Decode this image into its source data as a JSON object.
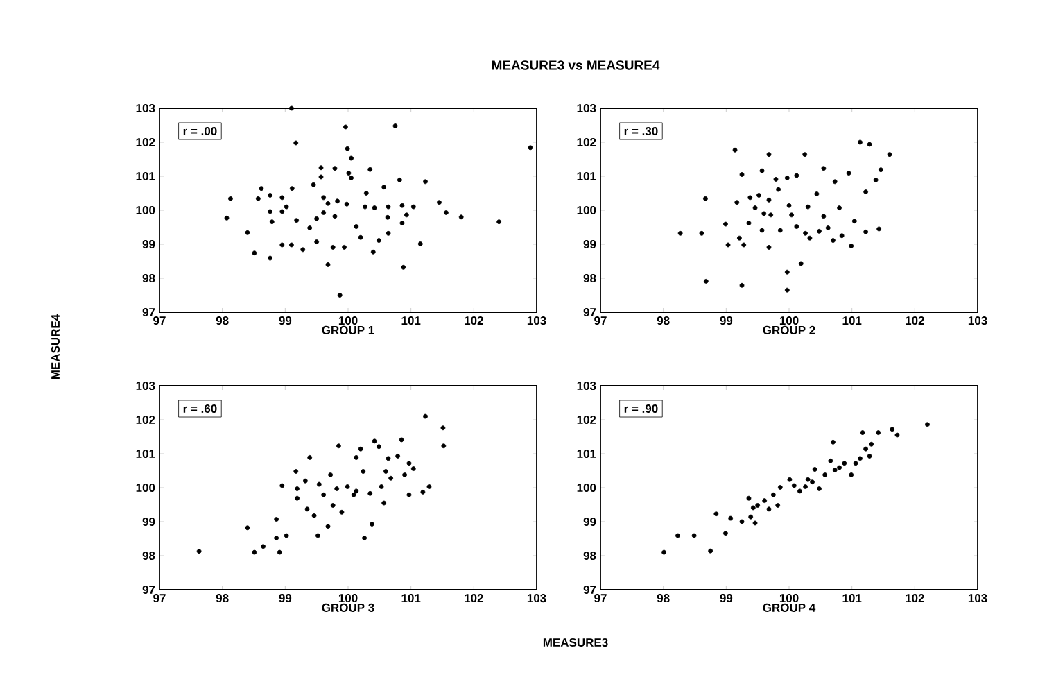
{
  "chart_data": [
    {
      "type": "scatter",
      "title": "MEASURE3 vs MEASURE4",
      "ylabel": "MEASURE4",
      "xlabel": "GROUP 1",
      "annotations": [
        "r = .00",
        "MEASURE3"
      ],
      "color": "#000000",
      "xlim": [
        97,
        103
      ],
      "ylim": [
        97,
        103
      ],
      "xticks": [
        97,
        98,
        99,
        100,
        101,
        102,
        103
      ],
      "yticks": [
        97,
        98,
        99,
        100,
        101,
        102,
        103
      ],
      "x": [
        99.1,
        99.96,
        100.75,
        99.17,
        102.9,
        99.99,
        100.05,
        99.57,
        99.79,
        100.01,
        100.35,
        99.57,
        100.05,
        100.82,
        101.23,
        99.45,
        100.57,
        98.62,
        99.11,
        100.29,
        98.13,
        98.57,
        98.76,
        98.95,
        99.61,
        99.83,
        99.98,
        99.68,
        100.27,
        100.42,
        100.64,
        100.86,
        101.04,
        101.45,
        99.02,
        98.76,
        98.95,
        99.61,
        99.79,
        99.5,
        100.63,
        100.93,
        101.56,
        101.8,
        98.07,
        98.79,
        99.18,
        99.39,
        100.13,
        100.86,
        102.4,
        98.4,
        100.2,
        100.49,
        100.64,
        99.5,
        98.95,
        99.1,
        99.28,
        99.76,
        99.94,
        101.15,
        100.4,
        98.51,
        98.76,
        99.68,
        100.88,
        99.87
      ],
      "values": [
        103.0,
        102.45,
        102.48,
        101.98,
        101.84,
        101.81,
        101.53,
        101.25,
        101.23,
        101.09,
        101.2,
        100.98,
        100.95,
        100.89,
        100.84,
        100.75,
        100.68,
        100.64,
        100.64,
        100.5,
        100.34,
        100.34,
        100.44,
        100.37,
        100.37,
        100.27,
        100.18,
        100.2,
        100.1,
        100.07,
        100.1,
        100.14,
        100.1,
        100.23,
        100.1,
        99.96,
        99.96,
        99.93,
        99.82,
        99.75,
        99.79,
        99.86,
        99.93,
        99.8,
        99.77,
        99.66,
        99.7,
        99.48,
        99.52,
        99.62,
        99.66,
        99.34,
        99.2,
        99.11,
        99.32,
        99.07,
        98.98,
        98.98,
        98.84,
        98.91,
        98.91,
        99.01,
        98.77,
        98.74,
        98.59,
        98.4,
        98.32,
        97.5
      ]
    },
    {
      "type": "scatter",
      "xlabel": "GROUP 2",
      "annotations": [
        "r = .30"
      ],
      "color": "#000000",
      "xlim": [
        97,
        103
      ],
      "ylim": [
        97,
        103
      ],
      "xticks": [
        97,
        98,
        99,
        100,
        101,
        102,
        103
      ],
      "yticks": [
        97,
        98,
        99,
        100,
        101,
        102,
        103
      ],
      "x": [
        99.14,
        99.68,
        100.25,
        101.13,
        101.28,
        101.6,
        99.25,
        99.57,
        99.79,
        99.97,
        100.12,
        100.55,
        100.73,
        100.95,
        101.46,
        101.38,
        101.22,
        98.67,
        99.17,
        99.38,
        99.52,
        99.68,
        99.83,
        100.44,
        99.46,
        99.6,
        99.71,
        100.0,
        100.04,
        100.3,
        100.55,
        100.8,
        101.04,
        98.99,
        99.36,
        99.57,
        99.86,
        100.12,
        100.26,
        100.48,
        100.62,
        100.84,
        101.22,
        101.43,
        98.27,
        98.61,
        99.21,
        99.03,
        99.28,
        99.68,
        100.33,
        100.7,
        100.99,
        100.19,
        99.97,
        98.68,
        99.25,
        99.97
      ],
      "values": [
        101.77,
        101.64,
        101.64,
        102.0,
        101.94,
        101.64,
        101.05,
        101.16,
        100.91,
        100.95,
        101.02,
        101.23,
        100.84,
        101.09,
        101.19,
        100.89,
        100.54,
        100.34,
        100.23,
        100.37,
        100.44,
        100.3,
        100.61,
        100.48,
        100.07,
        99.9,
        99.86,
        100.14,
        99.86,
        100.1,
        99.82,
        100.07,
        99.68,
        99.59,
        99.62,
        99.41,
        99.41,
        99.52,
        99.32,
        99.38,
        99.48,
        99.25,
        99.36,
        99.45,
        99.32,
        99.32,
        99.18,
        98.98,
        98.98,
        98.91,
        99.18,
        99.11,
        98.95,
        98.43,
        98.18,
        97.91,
        97.79,
        97.65
      ]
    },
    {
      "type": "scatter",
      "xlabel": "GROUP 3",
      "annotations": [
        "r = .60"
      ],
      "color": "#000000",
      "xlim": [
        97,
        103
      ],
      "ylim": [
        97,
        103
      ],
      "xticks": [
        97,
        98,
        99,
        100,
        101,
        102,
        103
      ],
      "yticks": [
        97,
        98,
        99,
        100,
        101,
        102,
        103
      ],
      "x": [
        97.63,
        98.4,
        98.51,
        98.65,
        98.86,
        98.91,
        99.02,
        98.86,
        98.95,
        99.17,
        99.19,
        99.19,
        99.39,
        99.32,
        99.35,
        99.46,
        99.52,
        99.54,
        99.61,
        99.68,
        99.72,
        99.76,
        99.82,
        99.85,
        99.9,
        99.99,
        100.09,
        100.13,
        100.2,
        100.24,
        100.26,
        100.38,
        100.35,
        100.42,
        100.49,
        100.57,
        100.6,
        100.64,
        100.68,
        100.85,
        100.79,
        100.9,
        100.97,
        101.04,
        100.97,
        101.19,
        101.29,
        101.23,
        101.51,
        101.52,
        100.53,
        100.13
      ],
      "values": [
        98.13,
        98.82,
        98.1,
        98.27,
        98.52,
        98.1,
        98.59,
        99.07,
        100.06,
        100.48,
        99.97,
        99.69,
        100.89,
        100.2,
        99.37,
        99.18,
        98.59,
        100.1,
        99.79,
        98.86,
        100.38,
        99.48,
        99.97,
        101.23,
        99.28,
        100.03,
        99.79,
        100.89,
        101.14,
        100.48,
        98.52,
        98.93,
        99.83,
        101.37,
        101.21,
        99.55,
        100.48,
        100.86,
        100.28,
        101.41,
        100.93,
        100.38,
        100.72,
        100.56,
        99.79,
        99.87,
        100.03,
        102.1,
        101.76,
        101.23,
        100.03,
        99.9
      ]
    },
    {
      "type": "scatter",
      "xlabel": "GROUP 4",
      "annotations": [
        "r = .90"
      ],
      "color": "#000000",
      "xlim": [
        97,
        103
      ],
      "ylim": [
        97,
        103
      ],
      "xticks": [
        97,
        98,
        99,
        100,
        101,
        102,
        103
      ],
      "yticks": [
        97,
        98,
        99,
        100,
        101,
        102,
        103
      ],
      "x": [
        98.01,
        98.23,
        98.49,
        98.75,
        98.99,
        98.84,
        99.07,
        99.25,
        99.39,
        99.46,
        99.36,
        99.5,
        99.61,
        99.68,
        99.75,
        99.86,
        100.01,
        100.08,
        100.17,
        100.26,
        100.37,
        100.41,
        100.48,
        100.57,
        100.66,
        100.7,
        100.73,
        100.8,
        100.88,
        100.99,
        101.06,
        101.13,
        101.17,
        101.22,
        101.28,
        101.42,
        101.64,
        101.72,
        101.31,
        102.2,
        99.82,
        100.3,
        99.43
      ],
      "values": [
        98.1,
        98.59,
        98.59,
        98.14,
        98.66,
        99.23,
        99.1,
        99.0,
        99.14,
        98.96,
        99.69,
        99.48,
        99.62,
        99.37,
        99.79,
        100.01,
        100.24,
        100.06,
        99.9,
        100.03,
        100.17,
        100.54,
        99.97,
        100.38,
        100.79,
        101.34,
        100.52,
        100.59,
        100.72,
        100.38,
        100.72,
        100.86,
        101.62,
        101.14,
        100.93,
        101.62,
        101.72,
        101.55,
        101.28,
        101.86,
        99.48,
        100.24,
        99.41
      ]
    }
  ]
}
